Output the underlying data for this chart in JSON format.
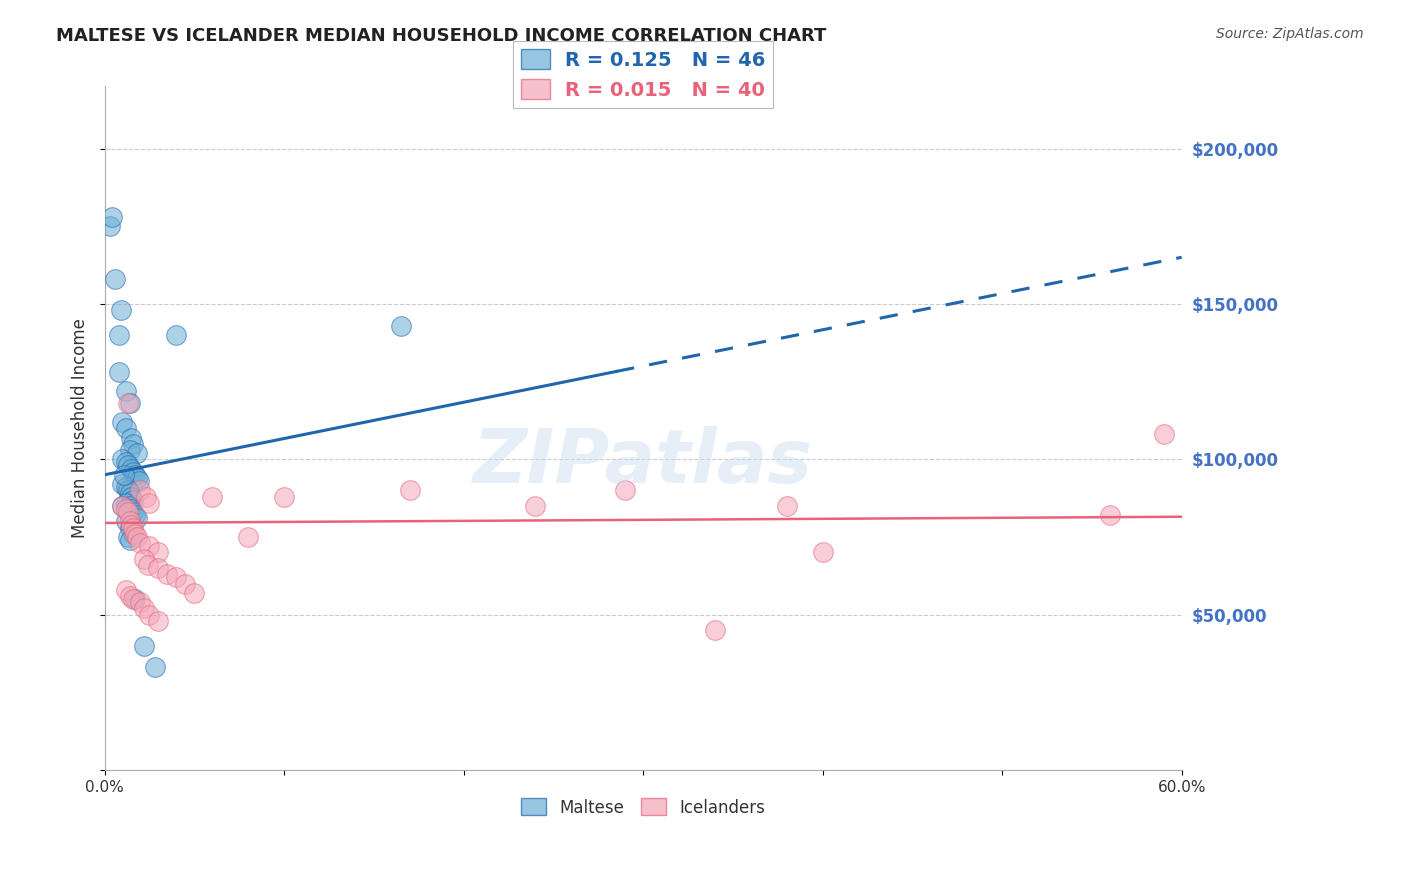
{
  "title": "MALTESE VS ICELANDER MEDIAN HOUSEHOLD INCOME CORRELATION CHART",
  "source": "Source: ZipAtlas.com",
  "ylabel": "Median Household Income",
  "xlim": [
    0.0,
    0.6
  ],
  "ylim": [
    0,
    220000
  ],
  "blue_color": "#6baed6",
  "pink_color": "#f4a6b8",
  "blue_line_color": "#2166ac",
  "pink_line_color": "#e8637a",
  "right_tick_color": "#4472c4",
  "watermark": "ZIPatlas",
  "maltese_x": [
    0.003,
    0.004,
    0.006,
    0.009,
    0.008,
    0.008,
    0.012,
    0.014,
    0.01,
    0.012,
    0.015,
    0.016,
    0.014,
    0.018,
    0.01,
    0.012,
    0.013,
    0.015,
    0.016,
    0.017,
    0.018,
    0.019,
    0.01,
    0.012,
    0.013,
    0.014,
    0.015,
    0.016,
    0.012,
    0.014,
    0.015,
    0.016,
    0.017,
    0.018,
    0.012,
    0.014,
    0.016,
    0.165,
    0.04,
    0.013,
    0.014,
    0.017,
    0.022,
    0.028,
    0.01,
    0.011
  ],
  "maltese_y": [
    175000,
    178000,
    158000,
    148000,
    140000,
    128000,
    122000,
    118000,
    112000,
    110000,
    107000,
    105000,
    103000,
    102000,
    100000,
    99000,
    98000,
    97000,
    96000,
    95000,
    94000,
    93000,
    92000,
    91000,
    90000,
    89000,
    88000,
    87000,
    86000,
    85000,
    84000,
    83000,
    82000,
    81000,
    80000,
    78000,
    76000,
    143000,
    140000,
    75000,
    74000,
    55000,
    40000,
    33000,
    85000,
    95000
  ],
  "icelander_x": [
    0.013,
    0.02,
    0.023,
    0.025,
    0.01,
    0.012,
    0.013,
    0.014,
    0.015,
    0.016,
    0.017,
    0.018,
    0.02,
    0.025,
    0.03,
    0.022,
    0.024,
    0.03,
    0.035,
    0.04,
    0.045,
    0.012,
    0.014,
    0.016,
    0.02,
    0.022,
    0.025,
    0.03,
    0.24,
    0.38,
    0.56,
    0.59,
    0.4,
    0.29,
    0.17,
    0.1,
    0.06,
    0.34,
    0.05,
    0.08
  ],
  "icelander_y": [
    118000,
    90000,
    88000,
    86000,
    85000,
    84000,
    83000,
    80000,
    79000,
    78000,
    76000,
    75000,
    73000,
    72000,
    70000,
    68000,
    66000,
    65000,
    63000,
    62000,
    60000,
    58000,
    56000,
    55000,
    54000,
    52000,
    50000,
    48000,
    85000,
    85000,
    82000,
    108000,
    70000,
    90000,
    90000,
    88000,
    88000,
    45000,
    57000,
    75000
  ]
}
